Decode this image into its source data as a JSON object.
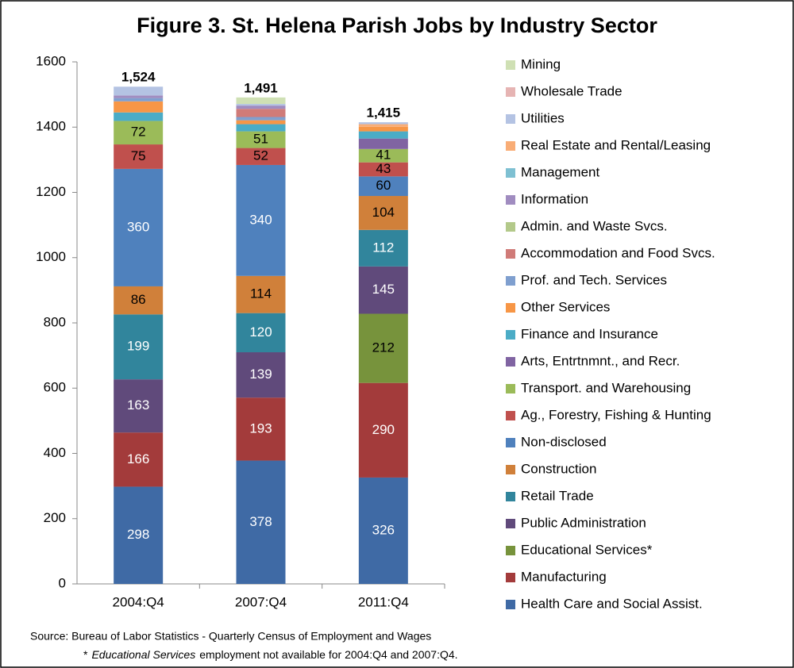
{
  "chart_data": {
    "type": "stacked_bar",
    "title": "Figure 3.  St. Helena Parish Jobs by Industry Sector",
    "categories": [
      "2004:Q4",
      "2007:Q4",
      "2011:Q4"
    ],
    "ylim": [
      0,
      1600
    ],
    "yticks": [
      0,
      200,
      400,
      600,
      800,
      1000,
      1200,
      1400,
      1600
    ],
    "totals": [
      1524,
      1491,
      1415
    ],
    "total_labels": [
      "1,524",
      "1,491",
      "1,415"
    ],
    "series": [
      {
        "name": "Health Care and Social Assist.",
        "color": "#3f6aa5",
        "values": [
          298,
          378,
          326
        ]
      },
      {
        "name": "Manufacturing",
        "color": "#a33b3b",
        "values": [
          166,
          193,
          290
        ]
      },
      {
        "name": "Educational Services*",
        "color": "#77933c",
        "values": [
          null,
          null,
          212
        ]
      },
      {
        "name": "Public Administration",
        "color": "#604a7b",
        "values": [
          163,
          139,
          145
        ]
      },
      {
        "name": "Retail Trade",
        "color": "#31859c",
        "values": [
          199,
          120,
          112
        ]
      },
      {
        "name": "Construction",
        "color": "#d0803a",
        "values": [
          86,
          114,
          104
        ]
      },
      {
        "name": "Non-disclosed",
        "color": "#4f81bd",
        "values": [
          360,
          340,
          60
        ]
      },
      {
        "name": "Ag., Forestry, Fishing & Hunting",
        "color": "#c0504d",
        "values": [
          75,
          52,
          43
        ]
      },
      {
        "name": "Transport. and Warehousing",
        "color": "#9bbb59",
        "values": [
          72,
          51,
          41
        ]
      },
      {
        "name": "Arts, Entrtnmnt.,  and Recr.",
        "color": "#8064a2",
        "values": [
          0,
          0,
          32
        ]
      },
      {
        "name": "Finance and Insurance",
        "color": "#4bacc6",
        "values": [
          26,
          22,
          22
        ]
      },
      {
        "name": "Other Services",
        "color": "#f79646",
        "values": [
          34,
          12,
          14
        ]
      },
      {
        "name": "Prof. and Tech. Services",
        "color": "#7f9fcf",
        "values": [
          10,
          10,
          0
        ]
      },
      {
        "name": "Accommodation and Food Svcs.",
        "color": "#d07b78",
        "values": [
          0,
          25,
          0
        ]
      },
      {
        "name": "Admin. and Waste Svcs.",
        "color": "#b3c98a",
        "values": [
          0,
          0,
          0
        ]
      },
      {
        "name": "Information",
        "color": "#a08cc0",
        "values": [
          8,
          10,
          0
        ]
      },
      {
        "name": "Management",
        "color": "#7ec0d2",
        "values": [
          0,
          0,
          0
        ]
      },
      {
        "name": "Real Estate  and Rental/Leasing",
        "color": "#f9ad76",
        "values": [
          0,
          0,
          8
        ]
      },
      {
        "name": "Utilities",
        "color": "#b4c3e3",
        "values": [
          27,
          5,
          6
        ]
      },
      {
        "name": "Wholesale Trade",
        "color": "#e6b4b3",
        "values": [
          0,
          0,
          0
        ]
      },
      {
        "name": "Mining",
        "color": "#cfe0b4",
        "values": [
          0,
          20,
          0
        ]
      }
    ],
    "source": "Source: Bureau of Labor Statistics - Quarterly Census of Employment and Wages",
    "note_mark": "*",
    "note_italic": "Educational Services",
    "note_rest": "employment not available for 2004:Q4 and 2007:Q4."
  }
}
